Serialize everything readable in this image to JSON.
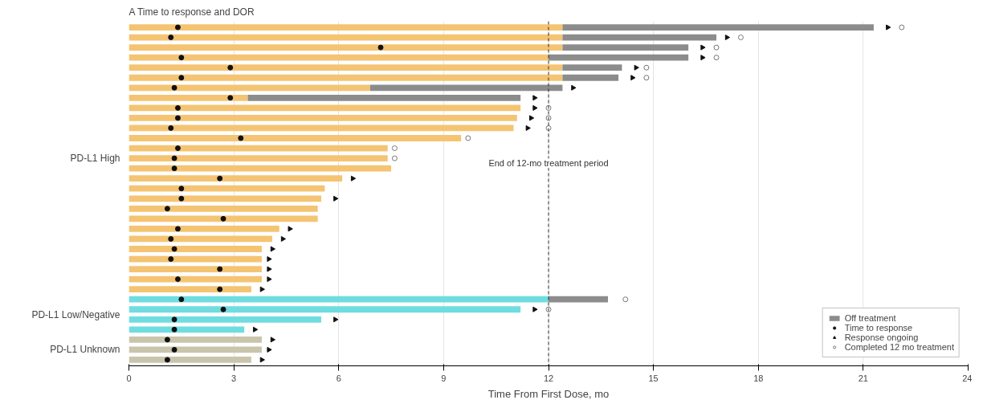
{
  "chart_data": {
    "type": "bar",
    "orientation": "horizontal",
    "stacked": true,
    "title": "Time to response and DOR",
    "xlabel": "Time From First Dose, mo",
    "categories": [
      null,
      null,
      null,
      null,
      null,
      null,
      null,
      null,
      null,
      null,
      null,
      null,
      null,
      null,
      null,
      null,
      null,
      null,
      null,
      null,
      null,
      null,
      null,
      null,
      null,
      null,
      null,
      null,
      null,
      null,
      null,
      null,
      null,
      null
    ],
    "annotations": [
      "A",
      "PD-L1 High",
      "PD-L1 Low/Negative",
      "PD-L1 Unknown"
    ],
    "xlim": [
      0,
      24
    ],
    "xticks": [
      0,
      3,
      6,
      9,
      12,
      15,
      18,
      21,
      24
    ],
    "grid": "x",
    "legend": "bottom right",
    "ref_lines": [
      {
        "axis": "x",
        "value": 12,
        "label": "End of 12-mo treatment period",
        "line_style": "dashed",
        "color": "#333333"
      }
    ],
    "series": [
      {
        "colors": [
          "#f4c472",
          "#f4c472",
          "#f4c472",
          "#f4c472",
          "#f4c472",
          "#f4c472",
          "#f4c472",
          "#f4c472",
          "#f4c472",
          "#f4c472",
          "#f4c472",
          "#f4c472",
          "#f4c472",
          "#f4c472",
          "#f4c472",
          "#f4c472",
          "#f4c472",
          "#f4c472",
          "#f4c472",
          "#f4c472",
          "#f4c472",
          "#f4c472",
          "#f4c472",
          "#f4c472",
          "#f4c472",
          "#f4c472",
          "#f4c472",
          "#6fdde0",
          "#6fdde0",
          "#6fdde0",
          "#6fdde0",
          "#c9c5ac",
          "#c9c5ac",
          "#c9c5ac"
        ],
        "values": [
          12.4,
          12.4,
          12.4,
          12.0,
          12.4,
          12.4,
          6.9,
          3.4,
          11.2,
          11.1,
          11.0,
          9.5,
          7.4,
          7.4,
          7.5,
          6.1,
          5.6,
          5.5,
          5.4,
          5.4,
          4.3,
          4.1,
          3.8,
          3.8,
          3.8,
          3.8,
          3.5,
          12.0,
          11.2,
          5.5,
          3.3,
          3.8,
          3.8,
          3.5
        ]
      },
      {
        "name": "Off treatment",
        "color": "#8c8c8c",
        "values": [
          8.9,
          4.4,
          3.6,
          4.0,
          1.7,
          1.6,
          5.5,
          7.8,
          null,
          null,
          null,
          null,
          null,
          null,
          null,
          null,
          null,
          null,
          null,
          null,
          null,
          null,
          null,
          null,
          null,
          null,
          null,
          1.7,
          null,
          null,
          null,
          null,
          null,
          null
        ]
      },
      {
        "type": "scatter",
        "name": "Time to response",
        "color": "#111111",
        "marker": "circle",
        "values": [
          1.4,
          1.2,
          7.2,
          1.5,
          2.9,
          1.5,
          1.3,
          2.9,
          1.4,
          1.4,
          1.2,
          3.2,
          1.4,
          1.3,
          1.3,
          2.6,
          1.5,
          1.5,
          1.1,
          2.7,
          1.4,
          1.2,
          1.3,
          1.2,
          2.6,
          1.4,
          2.6,
          1.5,
          2.7,
          1.3,
          1.3,
          1.1,
          1.3,
          1.1
        ]
      },
      {
        "type": "scatter",
        "name": "Response ongoing",
        "color": "#111111",
        "marker": "triangle",
        "values": [
          21.7,
          17.1,
          16.4,
          16.4,
          14.5,
          14.4,
          12.7,
          11.6,
          11.6,
          11.5,
          11.4,
          null,
          null,
          null,
          null,
          6.4,
          null,
          5.9,
          null,
          null,
          4.6,
          4.4,
          4.1,
          4.0,
          4.0,
          4.0,
          3.8,
          null,
          11.6,
          5.9,
          3.6,
          4.1,
          4.0,
          3.8
        ]
      },
      {
        "type": "scatter",
        "name": "Completed 12 mo treatment",
        "color": "#777777",
        "marker": "circle_open",
        "values": [
          22.1,
          17.5,
          16.8,
          16.8,
          14.8,
          14.8,
          null,
          null,
          12.0,
          12.0,
          12.0,
          9.7,
          7.6,
          7.6,
          null,
          null,
          null,
          null,
          null,
          null,
          null,
          null,
          null,
          null,
          null,
          null,
          null,
          14.2,
          12.0,
          null,
          null,
          null,
          null,
          null
        ]
      }
    ]
  }
}
